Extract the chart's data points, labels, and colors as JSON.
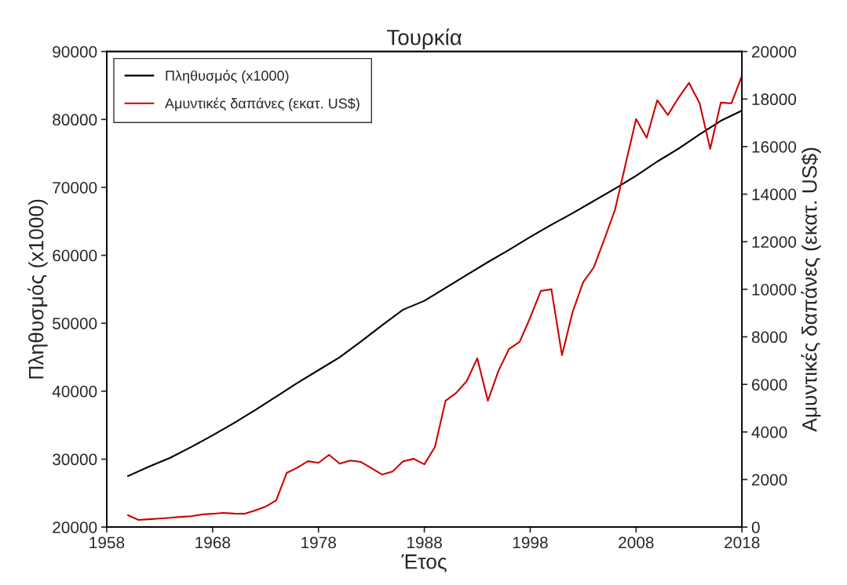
{
  "chart_data": {
    "type": "line",
    "title": "Τουρκία",
    "xlabel": "Έτος",
    "ylabel": "Πληθυσμός (x1000)",
    "y2label": "Αμυντικές δαπάνες (εκατ. US$)",
    "xlim": [
      1958,
      2018
    ],
    "xticks": [
      1958,
      1968,
      1978,
      1988,
      1998,
      2008,
      2018
    ],
    "ylim": [
      20000,
      90000
    ],
    "yticks": [
      20000,
      30000,
      40000,
      50000,
      60000,
      70000,
      80000,
      90000
    ],
    "y2lim": [
      0,
      20000
    ],
    "y2ticks": [
      0,
      2000,
      4000,
      6000,
      8000,
      10000,
      12000,
      14000,
      16000,
      18000,
      20000
    ],
    "grid": false,
    "legend": "top left",
    "marker": "none",
    "line_style": "solid",
    "series": [
      {
        "name": "Πληθυσμός (x1000)",
        "color": "#000000",
        "x": [
          1960,
          1962,
          1964,
          1966,
          1968,
          1970,
          1972,
          1974,
          1976,
          1978,
          1980,
          1982,
          1984,
          1986,
          1988,
          1990,
          1992,
          1994,
          1996,
          1998,
          2000,
          2002,
          2004,
          2006,
          2008,
          2010,
          2012,
          2014,
          2016,
          2018
        ],
        "values": [
          27500,
          28900,
          30200,
          31800,
          33500,
          35300,
          37200,
          39200,
          41200,
          43100,
          45000,
          47300,
          49700,
          52000,
          53300,
          55200,
          57100,
          59000,
          60800,
          62700,
          64500,
          66200,
          68000,
          69800,
          71700,
          73800,
          75700,
          77800,
          79800,
          81300
        ]
      },
      {
        "name": "Αμυντικές δαπάνες (εκατ. US$)",
        "color": "#cc0000",
        "axis": "y2",
        "x": [
          1960,
          1961,
          1962,
          1963,
          1964,
          1965,
          1966,
          1967,
          1968,
          1969,
          1970,
          1971,
          1972,
          1973,
          1974,
          1975,
          1976,
          1977,
          1978,
          1979,
          1980,
          1981,
          1982,
          1983,
          1984,
          1985,
          1986,
          1987,
          1988,
          1989,
          1990,
          1991,
          1992,
          1993,
          1994,
          1995,
          1996,
          1997,
          1998,
          1999,
          2000,
          2001,
          2002,
          2003,
          2004,
          2005,
          2006,
          2007,
          2008,
          2009,
          2010,
          2011,
          2012,
          2013,
          2014,
          2015,
          2016,
          2017,
          2018
        ],
        "values": [
          500,
          300,
          330,
          360,
          390,
          430,
          460,
          530,
          560,
          600,
          570,
          560,
          700,
          860,
          1120,
          2280,
          2500,
          2770,
          2700,
          3040,
          2670,
          2800,
          2740,
          2480,
          2210,
          2340,
          2770,
          2870,
          2640,
          3370,
          5310,
          5640,
          6140,
          7100,
          5310,
          6570,
          7490,
          7790,
          8810,
          9930,
          10000,
          7230,
          9040,
          10300,
          10920,
          12100,
          13330,
          15250,
          17160,
          16370,
          17950,
          17330,
          18050,
          18680,
          17820,
          15910,
          17850,
          17820,
          18980
        ]
      }
    ]
  }
}
